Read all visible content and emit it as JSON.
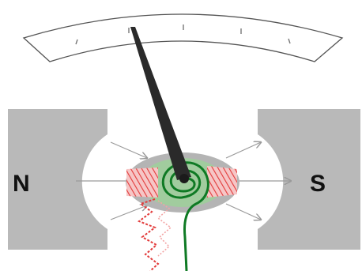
{
  "labels": {
    "north": "N",
    "south": "S"
  },
  "colors": {
    "magnet": "#b9b9b9",
    "gap": "#ffffff",
    "core": "#b4b4b4",
    "coil_band": "#9ed09a",
    "needle": "#2a2a2a",
    "red_wire": "#e23a3a",
    "green_wire": "#0f7a24",
    "scale_stroke": "#555555",
    "arrow": "#9a9a9a"
  },
  "icons": {
    "pointer": "needle-icon",
    "pivot": "pivot-icon"
  }
}
